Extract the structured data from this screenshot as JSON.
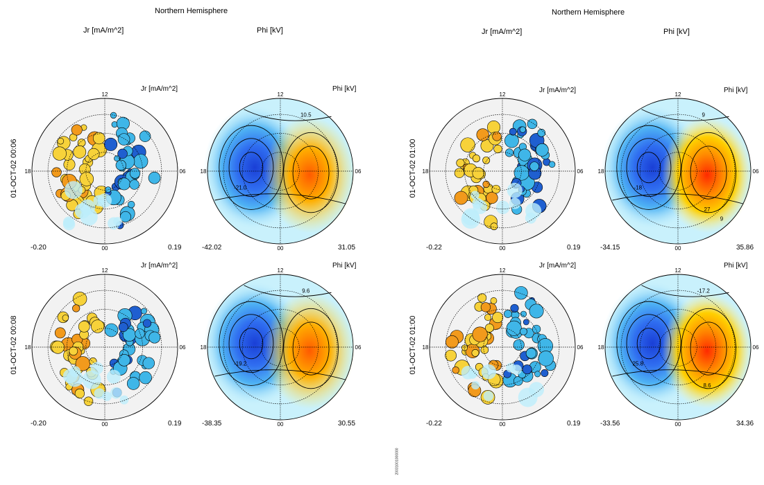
{
  "page": {
    "left": {
      "hemisphere": "Northern Hemisphere",
      "col_jr": "Jr [mA/m^2]",
      "col_phi": "Phi [kV]",
      "rows": [
        {
          "time": "01-OCT-02 00:06",
          "jr_min": "-0.20",
          "jr_max": "0.19",
          "phi_min": "-42.02",
          "phi_max": "31.05",
          "phi_contours": [
            "10.5",
            "-21.0"
          ]
        },
        {
          "time": "01-OCT-02 00:08",
          "jr_min": "-0.20",
          "jr_max": "0.19",
          "phi_min": "-38.35",
          "phi_max": "30.55",
          "phi_contours": [
            "9.6",
            "-19.2"
          ]
        }
      ]
    },
    "right": {
      "hemisphere": "Northern Hemisphere",
      "col_jr": "Jr [mA/m^2]",
      "col_phi": "Phi [kV]",
      "rows": [
        {
          "time": "01-OCT-02 01:00",
          "jr_min": "-0.22",
          "jr_max": "0.19",
          "phi_min": "-34.15",
          "phi_max": "35.86",
          "phi_contours": [
            "9",
            "-18",
            "27",
            "9"
          ]
        },
        {
          "time": "01-OCT-02 01:00",
          "jr_min": "-0.22",
          "jr_max": "0.19",
          "phi_min": "-33.56",
          "phi_max": "34.36",
          "phi_contours": [
            "-17.2",
            "25.8",
            "8.6"
          ]
        }
      ]
    },
    "ticks": {
      "top": "12",
      "left": "18",
      "right": "06",
      "bottom": "00"
    },
    "footer_tag": "20031001000000"
  },
  "chart_data": [
    {
      "type": "heatmap",
      "title": "Jr [mA/m^2]",
      "subtitle": "01-OCT-02 00:06",
      "value_range": [
        -0.2,
        0.19
      ]
    },
    {
      "type": "heatmap",
      "title": "Phi [kV]",
      "subtitle": "01-OCT-02 00:06",
      "value_range": [
        -42.02,
        31.05
      ]
    },
    {
      "type": "heatmap",
      "title": "Jr [mA/m^2]",
      "subtitle": "01-OCT-02 00:08",
      "value_range": [
        -0.2,
        0.19
      ]
    },
    {
      "type": "heatmap",
      "title": "Phi [kV]",
      "subtitle": "01-OCT-02 00:08",
      "value_range": [
        -38.35,
        30.55
      ]
    },
    {
      "type": "heatmap",
      "title": "Jr [mA/m^2]",
      "subtitle": "01-OCT-02 01:00",
      "value_range": [
        -0.22,
        0.19
      ]
    },
    {
      "type": "heatmap",
      "title": "Phi [kV]",
      "subtitle": "01-OCT-02 01:00",
      "value_range": [
        -34.15,
        35.86
      ]
    },
    {
      "type": "heatmap",
      "title": "Jr [mA/m^2]",
      "subtitle": "01-OCT-02 01:00",
      "value_range": [
        -0.22,
        0.19
      ]
    },
    {
      "type": "heatmap",
      "title": "Phi [kV]",
      "subtitle": "01-OCT-02 01:00",
      "value_range": [
        -33.56,
        34.36
      ]
    }
  ]
}
